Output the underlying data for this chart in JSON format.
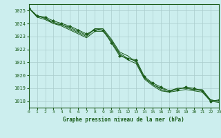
{
  "title": "Graphe pression niveau de la mer (hPa)",
  "background_color": "#cceeee",
  "grid_color": "#aacccc",
  "line_color": "#1a5c1a",
  "xlim": [
    0,
    23
  ],
  "ylim": [
    1017.5,
    1025.5
  ],
  "yticks": [
    1018,
    1019,
    1020,
    1021,
    1022,
    1023,
    1024,
    1025
  ],
  "xticks": [
    0,
    1,
    2,
    3,
    4,
    5,
    6,
    7,
    8,
    9,
    10,
    11,
    12,
    13,
    14,
    15,
    16,
    17,
    18,
    19,
    20,
    21,
    22,
    23
  ],
  "series": [
    [
      1025.2,
      1024.6,
      1024.5,
      1024.2,
      1024.0,
      1023.8,
      1023.5,
      1023.2,
      1023.5,
      1023.5,
      1022.5,
      1021.5,
      1021.3,
      1021.2,
      1019.9,
      1019.4,
      1019.1,
      1018.8,
      1018.9,
      1019.1,
      1019.0,
      1018.8,
      1018.0,
      1018.1
    ],
    [
      1025.2,
      1024.6,
      1024.4,
      1024.1,
      1023.9,
      1023.6,
      1023.3,
      1023.0,
      1023.6,
      1023.6,
      1022.8,
      1021.8,
      1021.5,
      1021.0,
      1019.8,
      1019.3,
      1018.9,
      1018.7,
      1019.0,
      1019.0,
      1018.9,
      1018.9,
      1018.1,
      1018.0
    ],
    [
      1025.2,
      1024.5,
      1024.3,
      1024.0,
      1023.8,
      1023.5,
      1023.2,
      1022.9,
      1023.4,
      1023.4,
      1022.6,
      1021.6,
      1021.2,
      1020.9,
      1019.7,
      1019.2,
      1018.8,
      1018.7,
      1018.8,
      1018.9,
      1018.8,
      1018.7,
      1018.0,
      1017.9
    ],
    [
      1025.2,
      1024.6,
      1024.4,
      1024.0,
      1023.9,
      1023.7,
      1023.4,
      1023.1,
      1023.6,
      1023.5,
      1022.7,
      1021.7,
      1021.3,
      1021.1,
      1019.8,
      1019.3,
      1019.0,
      1018.8,
      1019.0,
      1019.0,
      1018.9,
      1018.8,
      1018.1,
      1018.0
    ]
  ],
  "marker_series_idx": 0,
  "marker": "D",
  "marker_size": 2
}
